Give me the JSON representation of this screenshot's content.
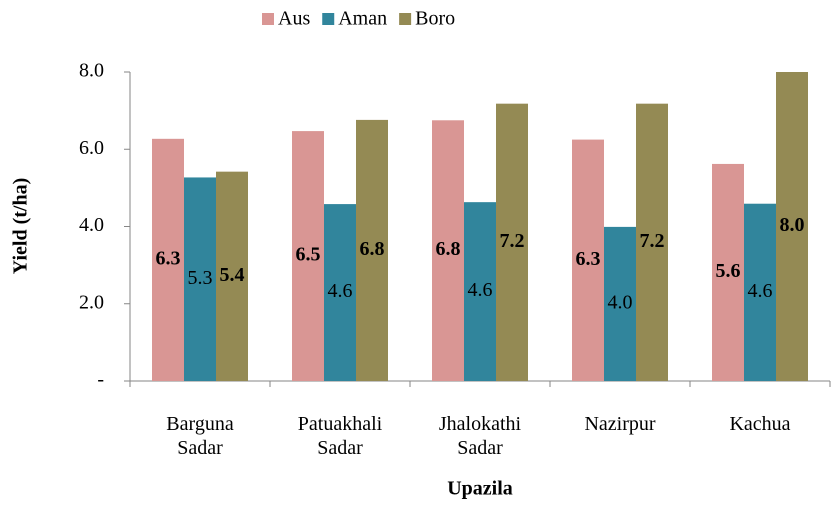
{
  "chart_data": {
    "type": "bar",
    "x_label": "Upazila",
    "y_label": "Yield (t/ha)",
    "categories": [
      "Barguna Sadar",
      "Patuakhali Sadar",
      "Jhalokathi Sadar",
      "Nazirpur",
      "Kachua"
    ],
    "series": [
      {
        "name": "Aus",
        "color": "#d99694",
        "values": [
          6.27,
          6.47,
          6.75,
          6.25,
          5.62
        ],
        "value_labels": [
          "6.3",
          "6.5",
          "6.8",
          "6.3",
          "5.6"
        ],
        "label_bold": true
      },
      {
        "name": "Aman",
        "color": "#31859c",
        "values": [
          5.27,
          4.58,
          4.63,
          3.99,
          4.59
        ],
        "value_labels": [
          "5.3",
          "4.6",
          "4.6",
          "4.0",
          "4.6"
        ],
        "label_bold": false
      },
      {
        "name": "Boro",
        "color": "#948a54",
        "values": [
          5.42,
          6.76,
          7.18,
          7.18,
          8.0
        ],
        "value_labels": [
          "5.4",
          "6.8",
          "7.2",
          "7.2",
          "8.0"
        ],
        "label_bold": true
      }
    ],
    "ylim": [
      0,
      8
    ],
    "yticks": [
      {
        "value": 0,
        "label": "-"
      },
      {
        "value": 2,
        "label": "2.0"
      },
      {
        "value": 4,
        "label": "4.0"
      },
      {
        "value": 6,
        "label": "6.0"
      },
      {
        "value": 8,
        "label": "8.0"
      }
    ],
    "legend": "top",
    "grid": false
  }
}
